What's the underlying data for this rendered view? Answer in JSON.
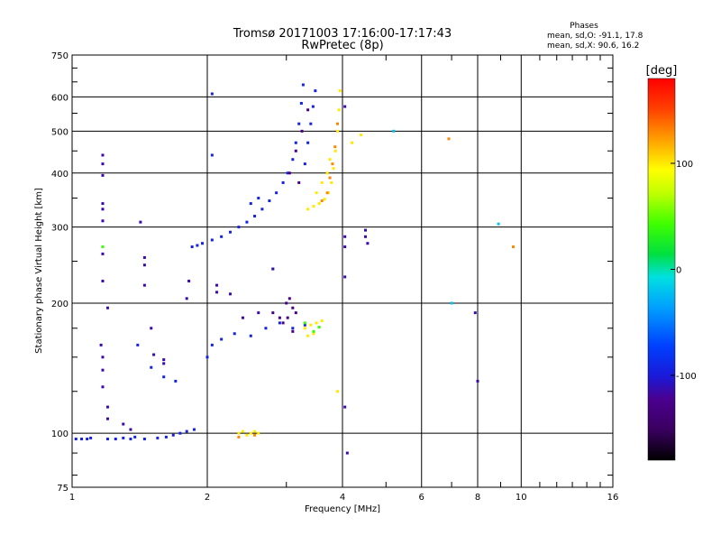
{
  "chart_data": {
    "type": "scatter",
    "title": "Tromsø 20171003 17:16:00-17:17:43",
    "subtitle": "RwPretec (8p)",
    "xlabel": "Frequency [MHz]",
    "ylabel": "Stationary phase Virtual Height [km]",
    "xscale": "log",
    "yscale": "log",
    "xlim": [
      1,
      16
    ],
    "ylim": [
      75,
      750
    ],
    "x_ticks": [
      "1",
      "2",
      "4",
      "6",
      "8",
      "10",
      "16"
    ],
    "x_tick_values": [
      1,
      2,
      4,
      6,
      8,
      10,
      16
    ],
    "y_ticks": [
      "75",
      "100",
      "200",
      "300",
      "400",
      "500",
      "600",
      "750"
    ],
    "y_tick_values": [
      75,
      100,
      200,
      300,
      400,
      500,
      600,
      750
    ],
    "grid": true,
    "phases_box": {
      "title": "Phases",
      "line1": "mean, sd,O: -91.1, 17.8",
      "line2": "mean, sd,X:  90.6, 16.2"
    },
    "colorbar": {
      "label": "[deg]",
      "range": [
        -180,
        180
      ],
      "ticks": [
        "100",
        "0",
        "-100"
      ],
      "tick_values": [
        100,
        0,
        -100
      ]
    },
    "series": [
      {
        "description_color": "blue",
        "phase": -95,
        "points": [
          [
            1.02,
            97
          ],
          [
            1.05,
            97
          ],
          [
            1.08,
            97
          ],
          [
            1.1,
            97.5
          ],
          [
            1.2,
            97
          ],
          [
            1.25,
            97
          ],
          [
            1.3,
            97.5
          ],
          [
            1.35,
            97
          ],
          [
            1.38,
            98
          ],
          [
            1.45,
            97
          ],
          [
            1.55,
            97.5
          ],
          [
            1.62,
            98
          ],
          [
            1.68,
            99
          ],
          [
            1.74,
            100
          ],
          [
            1.8,
            101
          ],
          [
            1.87,
            102
          ],
          [
            2.05,
            280
          ],
          [
            2.15,
            285
          ],
          [
            2.25,
            292
          ],
          [
            2.35,
            300
          ],
          [
            2.45,
            308
          ],
          [
            2.55,
            318
          ],
          [
            2.65,
            330
          ],
          [
            2.75,
            345
          ],
          [
            2.85,
            360
          ],
          [
            2.95,
            380
          ],
          [
            3.02,
            400
          ],
          [
            3.1,
            430
          ],
          [
            3.15,
            470
          ],
          [
            3.2,
            520
          ],
          [
            3.24,
            580
          ],
          [
            3.27,
            640
          ],
          [
            3.3,
            420
          ],
          [
            3.35,
            470
          ],
          [
            3.4,
            520
          ],
          [
            3.44,
            570
          ],
          [
            3.48,
            620
          ],
          [
            2.0,
            150
          ],
          [
            2.05,
            160
          ],
          [
            2.15,
            165
          ],
          [
            2.3,
            170
          ],
          [
            2.5,
            168
          ],
          [
            2.7,
            175
          ],
          [
            2.9,
            180
          ],
          [
            3.1,
            175
          ],
          [
            3.3,
            178
          ],
          [
            1.85,
            270
          ],
          [
            1.9,
            272
          ],
          [
            1.95,
            275
          ],
          [
            1.5,
            142
          ],
          [
            1.6,
            135
          ],
          [
            1.7,
            132
          ],
          [
            1.4,
            160
          ],
          [
            2.05,
            610
          ],
          [
            2.05,
            440
          ],
          [
            2.5,
            340
          ],
          [
            2.6,
            350
          ]
        ]
      },
      {
        "description_color": "purple",
        "phase": -130,
        "points": [
          [
            3.0,
            200
          ],
          [
            3.05,
            205
          ],
          [
            3.1,
            195
          ],
          [
            3.15,
            190
          ],
          [
            3.02,
            185
          ],
          [
            2.9,
            185
          ],
          [
            2.95,
            180
          ],
          [
            3.1,
            172
          ],
          [
            2.8,
            190
          ],
          [
            3.05,
            400
          ],
          [
            3.15,
            450
          ],
          [
            3.25,
            500
          ],
          [
            3.35,
            560
          ],
          [
            3.2,
            380
          ]
        ]
      },
      {
        "description_color": "yellow",
        "phase": 100,
        "points": [
          [
            3.35,
            330
          ],
          [
            3.45,
            335
          ],
          [
            3.55,
            340
          ],
          [
            3.65,
            348
          ],
          [
            3.72,
            360
          ],
          [
            3.78,
            380
          ],
          [
            3.82,
            410
          ],
          [
            3.86,
            450
          ],
          [
            3.9,
            500
          ],
          [
            3.93,
            560
          ],
          [
            3.95,
            620
          ],
          [
            3.5,
            360
          ],
          [
            3.6,
            380
          ],
          [
            3.7,
            400
          ],
          [
            3.75,
            430
          ],
          [
            3.3,
            175
          ],
          [
            3.4,
            178
          ],
          [
            3.5,
            180
          ],
          [
            3.6,
            182
          ],
          [
            3.35,
            168
          ],
          [
            3.45,
            170
          ],
          [
            2.35,
            100
          ],
          [
            2.4,
            101
          ],
          [
            2.45,
            99
          ],
          [
            2.5,
            100
          ],
          [
            2.55,
            101
          ],
          [
            2.6,
            100
          ],
          [
            4.2,
            470
          ],
          [
            4.4,
            490
          ],
          [
            3.9,
            125
          ]
        ]
      },
      {
        "description_color": "orange",
        "phase": 130,
        "points": [
          [
            3.75,
            390
          ],
          [
            3.8,
            420
          ],
          [
            3.85,
            460
          ],
          [
            3.9,
            520
          ],
          [
            3.7,
            360
          ],
          [
            3.6,
            345
          ],
          [
            6.9,
            480
          ],
          [
            9.6,
            270
          ],
          [
            2.35,
            98
          ],
          [
            2.55,
            99
          ]
        ]
      },
      {
        "description_color": "green",
        "phase": 40,
        "points": [
          [
            3.3,
            180
          ],
          [
            3.45,
            172
          ],
          [
            3.55,
            176
          ],
          [
            1.17,
            270
          ]
        ]
      },
      {
        "description_color": "cyan",
        "phase": -20,
        "points": [
          [
            2.8,
            240
          ],
          [
            7.0,
            200
          ],
          [
            8.9,
            305
          ],
          [
            5.2,
            500
          ]
        ]
      },
      {
        "description_color": "dark-blue",
        "phase": -115,
        "points": [
          [
            1.17,
            440
          ],
          [
            1.17,
            420
          ],
          [
            1.17,
            395
          ],
          [
            1.17,
            340
          ],
          [
            1.17,
            330
          ],
          [
            1.17,
            310
          ],
          [
            1.17,
            260
          ],
          [
            1.17,
            225
          ],
          [
            1.16,
            160
          ],
          [
            1.17,
            150
          ],
          [
            1.17,
            140
          ],
          [
            1.17,
            128
          ],
          [
            1.2,
            195
          ],
          [
            1.2,
            115
          ],
          [
            1.2,
            108
          ],
          [
            1.3,
            105
          ],
          [
            1.35,
            102
          ],
          [
            1.42,
            308
          ],
          [
            1.45,
            255
          ],
          [
            1.45,
            245
          ],
          [
            1.45,
            220
          ],
          [
            1.5,
            175
          ],
          [
            1.52,
            152
          ],
          [
            1.6,
            148
          ],
          [
            1.6,
            145
          ],
          [
            1.8,
            205
          ],
          [
            1.82,
            225
          ],
          [
            2.1,
            220
          ],
          [
            2.1,
            212
          ],
          [
            2.25,
            210
          ],
          [
            2.4,
            185
          ],
          [
            2.6,
            190
          ],
          [
            2.8,
            240
          ],
          [
            4.05,
            285
          ],
          [
            4.05,
            270
          ],
          [
            4.05,
            230
          ],
          [
            4.05,
            115
          ],
          [
            4.1,
            90
          ],
          [
            4.5,
            295
          ],
          [
            4.5,
            285
          ],
          [
            4.55,
            275
          ],
          [
            4.05,
            570
          ],
          [
            7.9,
            190
          ],
          [
            8.0,
            132
          ]
        ]
      }
    ]
  }
}
